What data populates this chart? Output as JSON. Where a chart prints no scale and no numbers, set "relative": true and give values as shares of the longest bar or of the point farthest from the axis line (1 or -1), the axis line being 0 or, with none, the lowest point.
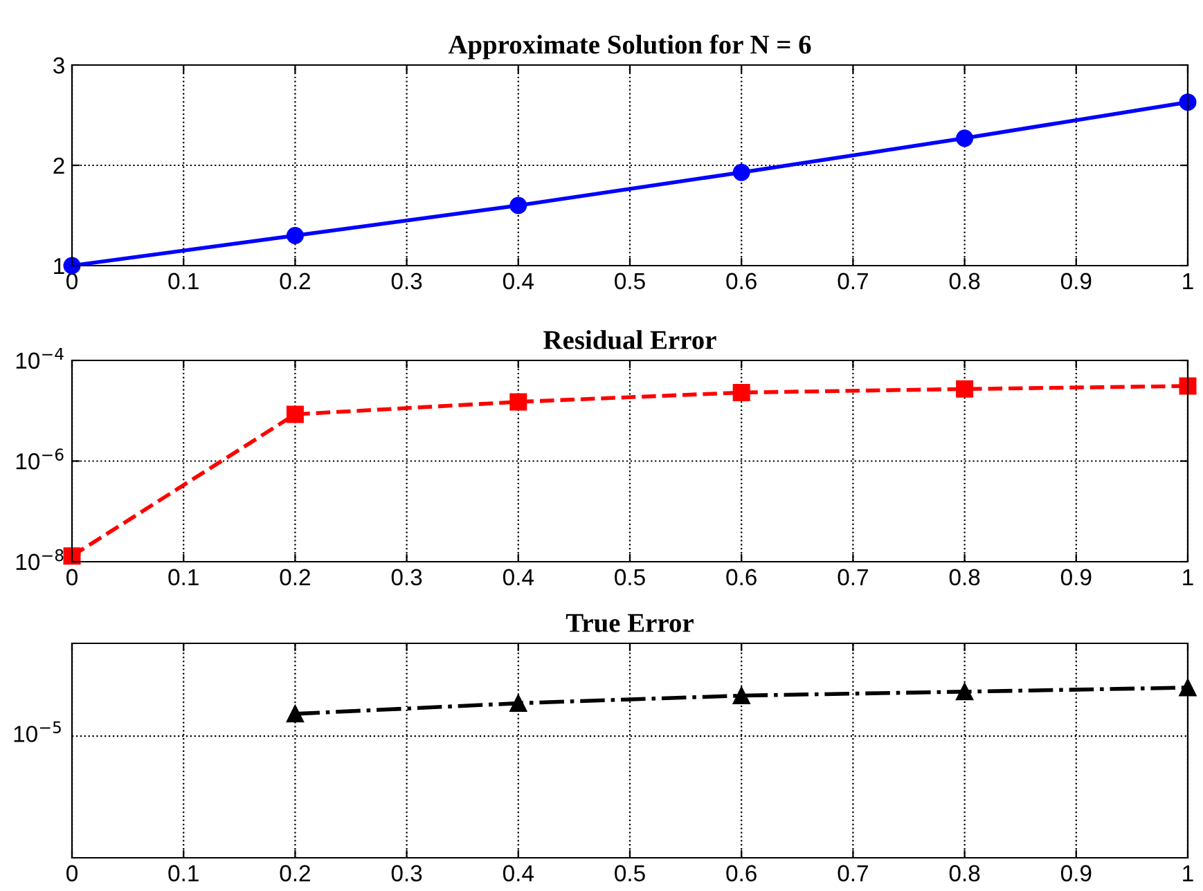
{
  "chart_data": [
    {
      "type": "line",
      "title": "Approximate Solution for N = 6",
      "x": [
        0,
        0.2,
        0.4,
        0.6,
        0.8,
        1
      ],
      "series": [
        {
          "color": "#0000ff",
          "values": [
            1.0,
            1.3,
            1.6,
            1.93,
            2.27,
            2.63
          ],
          "marker": "circle",
          "line_style": "solid"
        }
      ],
      "xlim": [
        0,
        1
      ],
      "xticks": [
        0,
        0.1,
        0.2,
        0.3,
        0.4,
        0.5,
        0.6,
        0.7,
        0.8,
        0.9,
        1
      ],
      "ylim": [
        1,
        3
      ],
      "yticks": [
        1,
        2,
        3
      ],
      "grid": true
    },
    {
      "type": "line",
      "title": "Residual Error",
      "x": [
        0,
        0.2,
        0.4,
        0.6,
        0.8,
        1
      ],
      "log": "y",
      "series": [
        {
          "color": "#ff0000",
          "values": [
            1.3e-08,
            8.5e-06,
            1.5e-05,
            2.3e-05,
            2.7e-05,
            3.1e-05
          ],
          "marker": "square",
          "line_style": "dashed"
        }
      ],
      "xlim": [
        0,
        1
      ],
      "xticks": [
        0,
        0.1,
        0.2,
        0.3,
        0.4,
        0.5,
        0.6,
        0.7,
        0.8,
        0.9,
        1
      ],
      "ylim": [
        1e-08,
        0.0001
      ],
      "yticks": [
        {
          "value": 1e-08,
          "label": "10$^{−8}$"
        },
        {
          "value": 1e-06,
          "label": "10$^{−6}$"
        },
        {
          "value": 0.0001,
          "label": "10$^{−4}$"
        }
      ],
      "grid": true
    },
    {
      "type": "line",
      "title": "True Error",
      "relative": true,
      "series": [
        {
          "color": "#000000",
          "x": [
            0.2,
            0.4,
            0.6,
            0.8,
            1
          ],
          "values": [
            0.846,
            0.908,
            0.953,
            0.976,
            1
          ],
          "marker": "triangle",
          "line_style": "dashdot"
        }
      ],
      "xlim": [
        0,
        1
      ],
      "xticks": [
        0,
        0.1,
        0.2,
        0.3,
        0.4,
        0.5,
        0.6,
        0.7,
        0.8,
        0.9,
        1
      ],
      "ref_lines": [
        {
          "axis": "y",
          "value": 0.715,
          "label": "10$^{−5}$",
          "color": "#000000",
          "line_style": "dotted"
        }
      ],
      "grid": "x"
    }
  ]
}
